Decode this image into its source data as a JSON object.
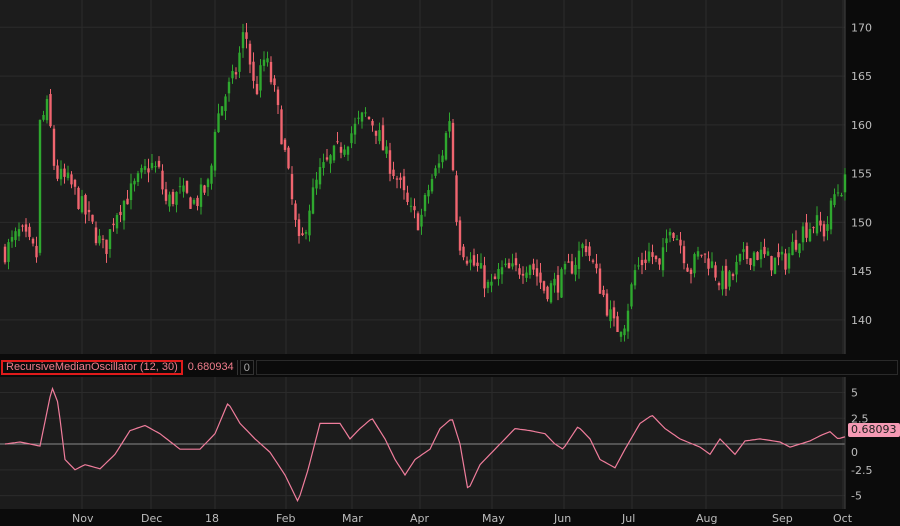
{
  "colors": {
    "up": "#2fa82f",
    "down": "#f0656f",
    "osc_line": "#f07d9c",
    "zero_line": "#8a8a8a",
    "bg": "#1c1c1c",
    "grid": "#2b2b2b"
  },
  "price_panel": {
    "y_ticks": [
      140,
      145,
      150,
      155,
      160,
      165,
      170
    ],
    "y_range": [
      136.5,
      172.8
    ],
    "x_range": [
      0,
      169
    ],
    "close_anchors": [
      [
        1,
        147
      ],
      [
        4,
        149
      ],
      [
        7.4,
        146.5
      ],
      [
        8,
        160
      ],
      [
        9.6,
        162
      ],
      [
        11,
        155
      ],
      [
        14,
        154
      ],
      [
        17,
        151
      ],
      [
        20,
        148
      ],
      [
        21,
        147
      ],
      [
        23,
        151
      ],
      [
        26,
        153
      ],
      [
        30,
        156
      ],
      [
        32,
        155
      ],
      [
        33,
        152
      ],
      [
        36,
        153
      ],
      [
        39,
        152
      ],
      [
        42,
        154
      ],
      [
        43,
        160
      ],
      [
        45,
        163
      ],
      [
        47,
        165
      ],
      [
        49,
        170
      ],
      [
        51,
        163
      ],
      [
        53,
        167
      ],
      [
        55,
        163
      ],
      [
        57,
        157
      ],
      [
        59,
        150
      ],
      [
        60,
        147
      ],
      [
        62,
        152
      ],
      [
        64,
        155
      ],
      [
        67,
        157
      ],
      [
        70,
        159
      ],
      [
        73,
        161
      ],
      [
        75,
        160
      ],
      [
        77,
        157
      ],
      [
        79,
        155
      ],
      [
        82,
        151
      ],
      [
        84,
        150
      ],
      [
        86,
        154
      ],
      [
        88,
        156
      ],
      [
        90,
        161
      ],
      [
        91,
        152
      ],
      [
        92,
        148
      ],
      [
        94,
        146
      ],
      [
        96,
        145
      ],
      [
        98,
        143
      ],
      [
        100,
        145
      ],
      [
        103,
        145
      ],
      [
        106,
        146
      ],
      [
        109,
        143
      ],
      [
        112,
        144
      ],
      [
        115,
        146
      ],
      [
        117,
        148
      ],
      [
        119,
        145
      ],
      [
        121,
        142
      ],
      [
        123,
        139
      ],
      [
        125,
        140
      ],
      [
        127,
        145
      ],
      [
        130,
        147
      ],
      [
        132,
        145
      ],
      [
        134,
        150
      ],
      [
        136,
        148
      ],
      [
        138,
        145
      ],
      [
        140,
        147
      ],
      [
        142,
        146
      ],
      [
        144,
        144
      ],
      [
        146,
        144
      ],
      [
        148,
        146
      ],
      [
        151,
        147
      ],
      [
        154,
        146
      ],
      [
        157,
        146
      ],
      [
        160,
        149
      ],
      [
        163,
        150
      ],
      [
        165,
        149
      ],
      [
        167,
        153
      ],
      [
        169,
        154
      ]
    ]
  },
  "indicator": {
    "name": "RecursiveMedianOscillator (12, 30)",
    "value": "0.680934",
    "zero_label": "0",
    "last_value_badge": "0.68093",
    "y_ticks": [
      "5",
      "2.5",
      "0",
      "-2.5",
      "-5"
    ],
    "y_tick_values": [
      5,
      2.5,
      0,
      -2.5,
      -5
    ],
    "y_range": [
      -6.3,
      6.5
    ],
    "anchors": [
      [
        1,
        0
      ],
      [
        4,
        0.2
      ],
      [
        8,
        -0.2
      ],
      [
        10.4,
        5.5
      ],
      [
        11.6,
        4
      ],
      [
        13,
        -1.5
      ],
      [
        15,
        -2.5
      ],
      [
        17,
        -2
      ],
      [
        20,
        -2.4
      ],
      [
        23,
        -1
      ],
      [
        26,
        1.3
      ],
      [
        29,
        1.8
      ],
      [
        32,
        1
      ],
      [
        36,
        -0.5
      ],
      [
        40,
        -0.5
      ],
      [
        43,
        1
      ],
      [
        45.6,
        4
      ],
      [
        48,
        2
      ],
      [
        51,
        0.5
      ],
      [
        54,
        -0.8
      ],
      [
        57,
        -3
      ],
      [
        59.6,
        -5.6
      ],
      [
        61.6,
        -2.5
      ],
      [
        64,
        2
      ],
      [
        68,
        2
      ],
      [
        70,
        0.5
      ],
      [
        72,
        1.5
      ],
      [
        74.4,
        2.5
      ],
      [
        77,
        0.5
      ],
      [
        79,
        -1.5
      ],
      [
        81,
        -3
      ],
      [
        83,
        -1.5
      ],
      [
        86,
        -0.5
      ],
      [
        88,
        1.5
      ],
      [
        90.4,
        2.5
      ],
      [
        92,
        0
      ],
      [
        93.6,
        -4.5
      ],
      [
        96,
        -2
      ],
      [
        99,
        -0.5
      ],
      [
        103,
        1.5
      ],
      [
        106,
        1.3
      ],
      [
        109,
        1
      ],
      [
        111,
        0
      ],
      [
        112.6,
        -0.5
      ],
      [
        115.6,
        1.7
      ],
      [
        118,
        0.5
      ],
      [
        120,
        -1.5
      ],
      [
        123,
        -2.3
      ],
      [
        125,
        -0.5
      ],
      [
        128,
        2
      ],
      [
        130.4,
        2.8
      ],
      [
        133,
        1.5
      ],
      [
        136,
        0.5
      ],
      [
        140,
        -0.3
      ],
      [
        142,
        -1
      ],
      [
        144,
        0.5
      ],
      [
        147,
        -1
      ],
      [
        149,
        0.3
      ],
      [
        152,
        0.5
      ],
      [
        156,
        0.2
      ],
      [
        158,
        -0.3
      ],
      [
        160,
        0
      ],
      [
        162,
        0.3
      ],
      [
        164,
        0.8
      ],
      [
        166,
        1.2
      ],
      [
        167.6,
        0.5
      ],
      [
        169,
        0.7
      ]
    ]
  },
  "x_axis": {
    "labels": [
      "Nov",
      "Dec",
      "18",
      "Feb",
      "Mar",
      "Apr",
      "May",
      "Jun",
      "Jul",
      "Aug",
      "Sep",
      "Oct"
    ],
    "positions": [
      16.4,
      30.2,
      43,
      57.2,
      70.4,
      84,
      98.4,
      112.8,
      126.4,
      141.2,
      156.4,
      168.6
    ]
  }
}
